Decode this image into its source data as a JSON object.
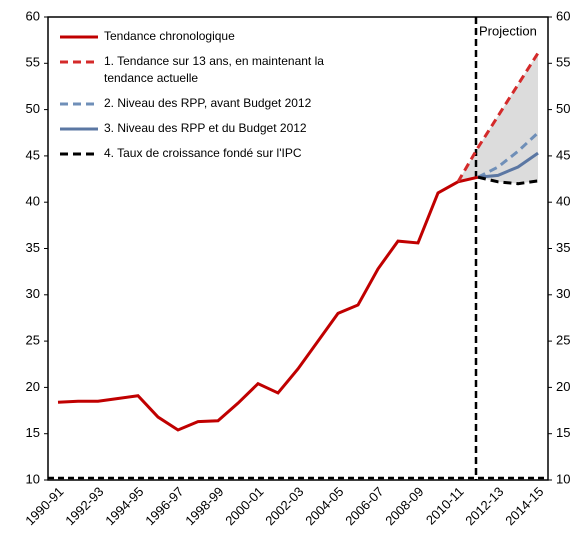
{
  "chart_data": {
    "type": "line",
    "annotations": [
      "Projection"
    ],
    "categories": [
      "1990-91",
      null,
      "1992-93",
      null,
      "1994-95",
      null,
      "1996-97",
      null,
      "1998-99",
      null,
      "2000-01",
      null,
      "2002-03",
      null,
      "2004-05",
      null,
      "2006-07",
      null,
      "2008-09",
      null,
      "2010-11",
      null,
      "2012-13",
      null,
      "2014-15"
    ],
    "series": [
      {
        "name": "Tendance chronologique",
        "color": "#c00000",
        "dash": false,
        "values": [
          18.4,
          18.5,
          18.5,
          18.8,
          19.1,
          16.8,
          15.4,
          16.3,
          16.4,
          18.3,
          20.4,
          19.4,
          22.0,
          25.0,
          28.0,
          28.9,
          32.8,
          35.8,
          35.6,
          41.0,
          42.2,
          42.7,
          null,
          null,
          null
        ]
      },
      {
        "name": "1. Tendance sur 13 ans, en maintenant la tendance actuelle",
        "color": "#d42a2a",
        "dash": true,
        "values": [
          null,
          null,
          null,
          null,
          null,
          null,
          null,
          null,
          null,
          null,
          null,
          null,
          null,
          null,
          null,
          null,
          null,
          null,
          null,
          null,
          42.2,
          45.9,
          49.3,
          52.7,
          56.1
        ]
      },
      {
        "name": "2. Niveau des RPP, avant Budget 2012",
        "color": "#6f8fb8",
        "dash": true,
        "values": [
          null,
          null,
          null,
          null,
          null,
          null,
          null,
          null,
          null,
          null,
          null,
          null,
          null,
          null,
          null,
          null,
          null,
          null,
          null,
          null,
          null,
          42.7,
          43.8,
          45.5,
          47.5
        ]
      },
      {
        "name": "3. Niveau des RPP et du Budget 2012",
        "color": "#5b77a3",
        "dash": false,
        "values": [
          null,
          null,
          null,
          null,
          null,
          null,
          null,
          null,
          null,
          null,
          null,
          null,
          null,
          null,
          null,
          null,
          null,
          null,
          null,
          null,
          null,
          42.7,
          42.9,
          43.8,
          45.3
        ]
      },
      {
        "name": "4. Taux de croissance fondé sur l'IPC",
        "color": "#000000",
        "dash": true,
        "values": [
          null,
          null,
          null,
          null,
          null,
          null,
          null,
          null,
          null,
          null,
          null,
          null,
          null,
          null,
          null,
          null,
          null,
          null,
          null,
          null,
          null,
          42.7,
          42.2,
          42.0,
          42.3
        ]
      }
    ],
    "ylim": [
      10,
      60
    ],
    "yticks": [
      10,
      15,
      20,
      25,
      30,
      35,
      40,
      45,
      50,
      55,
      60
    ],
    "y2lim": [
      10,
      60
    ],
    "y2ticks": [
      10,
      15,
      20,
      25,
      30,
      35,
      40,
      45,
      50,
      55,
      60
    ],
    "shade_color": "#dcdcdc"
  }
}
